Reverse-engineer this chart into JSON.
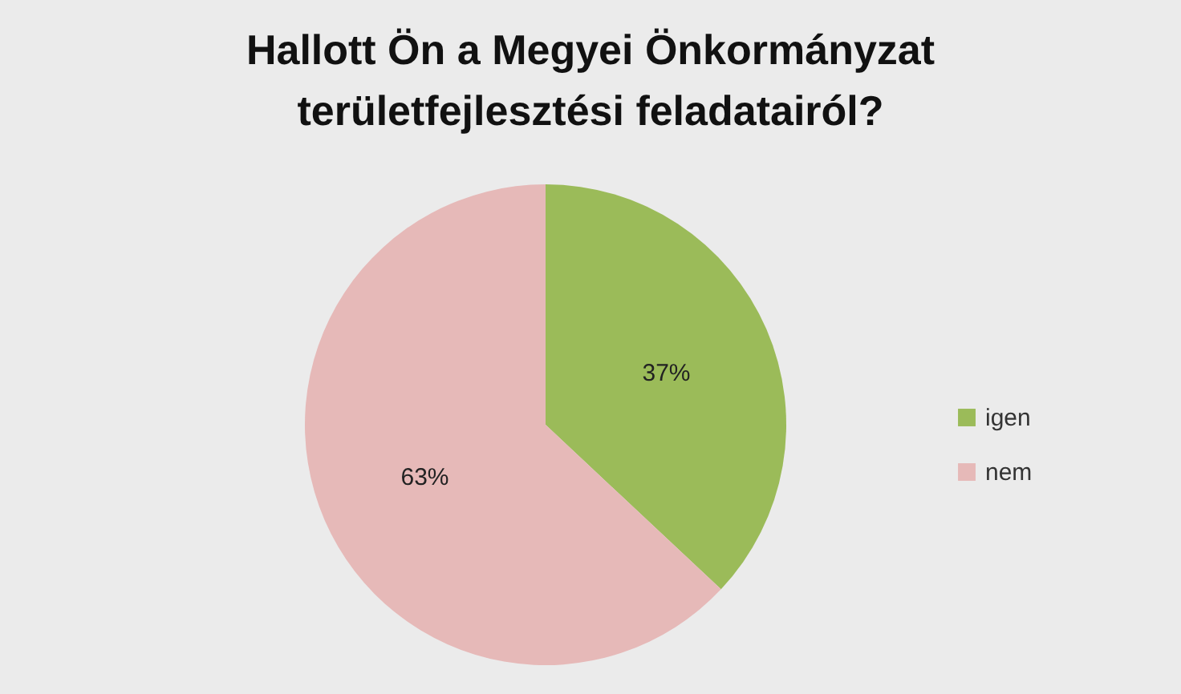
{
  "chart_data": {
    "type": "pie",
    "title": "Hallott Ön a Megyei Önkormányzat\nterületfejlesztési feladatairól?",
    "categories": [
      "igen",
      "nem"
    ],
    "values": [
      37,
      63
    ],
    "colors": [
      "#9bbb59",
      "#e6b9b8"
    ],
    "value_labels": [
      "37%",
      "63%"
    ],
    "legend": "right"
  }
}
